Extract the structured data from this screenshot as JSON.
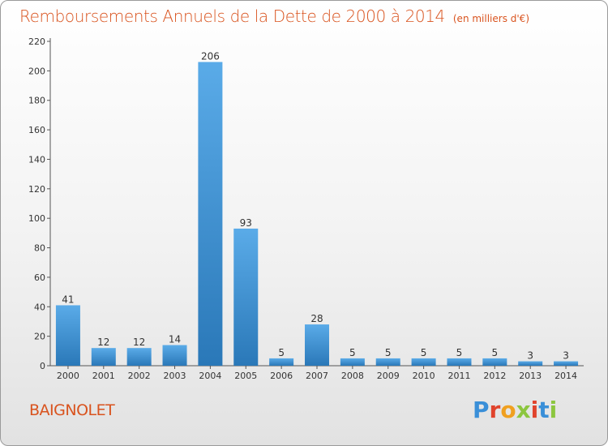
{
  "header": {
    "title": "Remboursements Annuels de la Dette de 2000 à 2014",
    "unit": "(en milliers d'€)"
  },
  "footer": {
    "city": "BAIGNOLET",
    "logo_text": "Proxiti",
    "logo_colors": [
      "#3a8fd8",
      "#e0432c",
      "#f0a020",
      "#8cc63f",
      "#e0432c",
      "#3a8fd8",
      "#8cc63f"
    ]
  },
  "colors": {
    "title": "#d9531e",
    "bar_light": "#5aabe8",
    "bar_dark": "#2a78b8",
    "axis": "#555555"
  },
  "chart_data": {
    "type": "bar",
    "title": "Remboursements Annuels de la Dette de 2000 à 2014",
    "xlabel": "",
    "ylabel": "",
    "categories": [
      "2000",
      "2001",
      "2002",
      "2003",
      "2004",
      "2005",
      "2006",
      "2007",
      "2008",
      "2009",
      "2010",
      "2011",
      "2012",
      "2013",
      "2014"
    ],
    "values": [
      41,
      12,
      12,
      14,
      206,
      93,
      5,
      28,
      5,
      5,
      5,
      5,
      5,
      3,
      3
    ],
    "ylim": [
      0,
      220
    ],
    "yticks": [
      0,
      20,
      40,
      60,
      80,
      100,
      120,
      140,
      160,
      180,
      200,
      220
    ],
    "grid": false,
    "legend": "none",
    "data_labels": true
  }
}
